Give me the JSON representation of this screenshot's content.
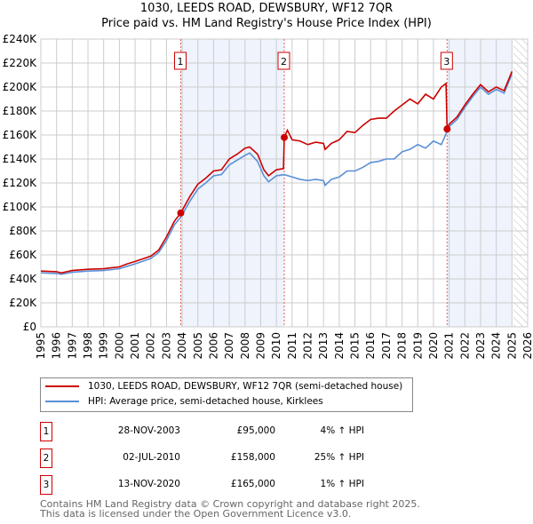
{
  "chart_data": {
    "type": "line",
    "title": "1030, LEEDS ROAD, DEWSBURY, WF12 7QR",
    "subtitle": "Price paid vs. HM Land Registry's House Price Index (HPI)",
    "xlim": [
      1995,
      2026
    ],
    "ylim": [
      0,
      240000
    ],
    "y_ticks": [
      "£0",
      "£20K",
      "£40K",
      "£60K",
      "£80K",
      "£100K",
      "£120K",
      "£140K",
      "£160K",
      "£180K",
      "£200K",
      "£220K",
      "£240K"
    ],
    "x_ticks": [
      "1995",
      "1996",
      "1997",
      "1998",
      "1999",
      "2000",
      "2001",
      "2002",
      "2003",
      "2004",
      "2005",
      "2006",
      "2007",
      "2008",
      "2009",
      "2010",
      "2011",
      "2012",
      "2013",
      "2014",
      "2015",
      "2016",
      "2017",
      "2018",
      "2019",
      "2020",
      "2021",
      "2022",
      "2023",
      "2024",
      "2025",
      "2026"
    ],
    "grid": true,
    "shaded_periods": [
      [
        2003.91,
        2010.5
      ],
      [
        2020.87,
        2025.0
      ]
    ],
    "projection_from": 2025.1,
    "series": [
      {
        "name": "1030, LEEDS ROAD, DEWSBURY, WF12 7QR (semi-detached house)",
        "color": "#cc0000",
        "x": [
          1995,
          1996,
          1996.3,
          1997,
          1998,
          1999,
          2000,
          2000.5,
          2001,
          2002,
          2002.5,
          2003,
          2003.5,
          2003.91,
          2004.5,
          2005,
          2005.5,
          2006,
          2006.5,
          2007,
          2007.5,
          2008,
          2008.3,
          2008.8,
          2009.2,
          2009.5,
          2010,
          2010.45,
          2010.5,
          2010.7,
          2011,
          2011.5,
          2012,
          2012.5,
          2013,
          2013.1,
          2013.5,
          2014,
          2014.5,
          2015,
          2015.5,
          2016,
          2016.5,
          2017,
          2017.5,
          2018,
          2018.5,
          2019,
          2019.5,
          2020,
          2020.5,
          2020.8,
          2020.87,
          2021,
          2021.5,
          2022,
          2022.5,
          2023,
          2023.5,
          2024,
          2024.5,
          2025
        ],
        "y": [
          46500,
          46000,
          45000,
          47000,
          48000,
          48500,
          50000,
          52500,
          54500,
          59000,
          64000,
          75000,
          88000,
          95000,
          109000,
          119000,
          124000,
          130000,
          131000,
          140000,
          144000,
          149000,
          150000,
          144000,
          131000,
          126000,
          131000,
          132000,
          158000,
          164000,
          156000,
          155000,
          152000,
          154000,
          153000,
          148000,
          153000,
          156000,
          163000,
          162000,
          168000,
          173000,
          174000,
          174000,
          180000,
          185000,
          190000,
          186000,
          194000,
          190000,
          200000,
          203000,
          165000,
          169000,
          175000,
          185000,
          194000,
          202000,
          196000,
          200000,
          197000,
          213000
        ]
      },
      {
        "name": "HPI: Average price, semi-detached house, Kirklees",
        "color": "#5b8fd6",
        "x": [
          1995,
          1996,
          1996.3,
          1997,
          1998,
          1999,
          2000,
          2000.5,
          2001,
          2002,
          2002.5,
          2003,
          2003.5,
          2003.91,
          2004.5,
          2005,
          2005.5,
          2006,
          2006.5,
          2007,
          2007.5,
          2008,
          2008.3,
          2008.8,
          2009.2,
          2009.5,
          2010,
          2010.5,
          2011,
          2011.5,
          2012,
          2012.5,
          2013,
          2013.1,
          2013.5,
          2014,
          2014.5,
          2015,
          2015.5,
          2016,
          2016.5,
          2017,
          2017.5,
          2018,
          2018.5,
          2019,
          2019.5,
          2020,
          2020.5,
          2020.87,
          2021,
          2021.5,
          2022,
          2022.5,
          2023,
          2023.5,
          2024,
          2024.5,
          2025
        ],
        "y": [
          45000,
          44500,
          43800,
          45500,
          46500,
          47000,
          48500,
          50500,
          52500,
          57000,
          62000,
          72000,
          85000,
          91500,
          105000,
          115000,
          120000,
          126000,
          127000,
          135000,
          139000,
          143000,
          145000,
          138000,
          126000,
          121000,
          126000,
          127000,
          125000,
          123000,
          122000,
          123000,
          122000,
          118000,
          123000,
          125000,
          130000,
          130000,
          133000,
          137000,
          138000,
          140000,
          140000,
          146000,
          148000,
          152000,
          149000,
          155000,
          152000,
          163000,
          167000,
          173000,
          183000,
          192000,
          200000,
          194000,
          198000,
          195000,
          211000
        ]
      }
    ],
    "sales": [
      {
        "label": "1",
        "date": "28-NOV-2003",
        "x": 2003.91,
        "price": 95000,
        "price_text": "£95,000",
        "hpi": "4% ↑ HPI"
      },
      {
        "label": "2",
        "date": "02-JUL-2010",
        "x": 2010.5,
        "price": 158000,
        "price_text": "£158,000",
        "hpi": "25% ↑ HPI"
      },
      {
        "label": "3",
        "date": "13-NOV-2020",
        "x": 2020.87,
        "price": 165000,
        "price_text": "£165,000",
        "hpi": "1% ↑ HPI"
      }
    ]
  },
  "legend": {
    "red": "1030, LEEDS ROAD, DEWSBURY, WF12 7QR (semi-detached house)",
    "blue": "HPI: Average price, semi-detached house, Kirklees"
  },
  "footer": {
    "line1": "Contains HM Land Registry data © Crown copyright and database right 2025.",
    "line2": "This data is licensed under the Open Government Licence v3.0."
  }
}
